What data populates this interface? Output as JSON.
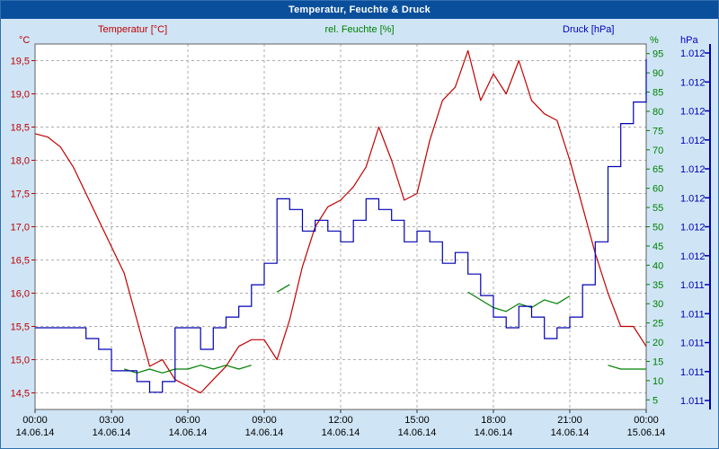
{
  "window": {
    "title": "Temperatur, Feuchte & Druck"
  },
  "header": {
    "temp_label": "Temperatur [°C]",
    "hum_label": "rel. Feuchte [%]",
    "press_label": "Druck [hPa]"
  },
  "axes_units": {
    "left": "°C",
    "right_hum": "%",
    "right_press": "hPa"
  },
  "colors": {
    "temp": "#C00000",
    "hum": "#008000",
    "press": "#0000B4",
    "titlebar": "#0A4F9C",
    "page_bg": "#CFE5F6",
    "plot_bg": "#FFFFFF",
    "grid": "#ADADAD",
    "plot_border": "#606060",
    "axis_text": "#000000"
  },
  "chart_data": {
    "type": "line",
    "title": "Temperatur, Feuchte & Druck",
    "grid": "dashed",
    "legend_position": "top",
    "x_hours": [
      0,
      0.5,
      1,
      1.5,
      2,
      2.5,
      3,
      3.5,
      4,
      4.5,
      5,
      5.5,
      6,
      6.5,
      7,
      7.5,
      8,
      8.5,
      9,
      9.5,
      10,
      10.5,
      11,
      11.5,
      12,
      12.5,
      13,
      13.5,
      14,
      14.5,
      15,
      15.5,
      16,
      16.5,
      17,
      17.5,
      18,
      18.5,
      19,
      19.5,
      20,
      20.5,
      21,
      21.5,
      22,
      22.5,
      23,
      23.5,
      24
    ],
    "x_tick_hours": [
      0,
      3,
      6,
      9,
      12,
      15,
      18,
      21,
      24
    ],
    "x_tick_labels": [
      "00:00",
      "03:00",
      "06:00",
      "09:00",
      "12:00",
      "15:00",
      "18:00",
      "21:00",
      "00:00"
    ],
    "x_date_labels": [
      "14.06.14",
      "14.06.14",
      "14.06.14",
      "14.06.14",
      "14.06.14",
      "14.06.14",
      "14.06.14",
      "14.06.14",
      "15.06.14"
    ],
    "series": [
      {
        "name": "Temperatur",
        "unit": "°C",
        "color_key": "temp",
        "axis": "temp",
        "style": "line",
        "values": [
          18.4,
          18.35,
          18.2,
          17.9,
          17.5,
          17.1,
          16.7,
          16.3,
          15.6,
          14.9,
          15.0,
          14.7,
          14.6,
          14.5,
          14.7,
          14.9,
          15.2,
          15.3,
          15.3,
          15.0,
          15.6,
          16.4,
          17.0,
          17.3,
          17.4,
          17.6,
          17.9,
          18.5,
          18.0,
          17.4,
          17.5,
          18.3,
          18.9,
          19.1,
          19.65,
          18.9,
          19.3,
          19.0,
          19.5,
          18.9,
          18.7,
          18.6,
          18.0,
          17.3,
          16.6,
          16.0,
          15.5,
          15.5,
          15.2
        ]
      },
      {
        "name": "rel. Feuchte",
        "unit": "%",
        "color_key": "hum",
        "axis": "hum",
        "style": "line",
        "values": [
          null,
          null,
          null,
          null,
          null,
          null,
          null,
          13,
          12,
          13,
          12,
          13,
          13,
          14,
          13,
          14,
          13,
          14,
          null,
          33,
          35,
          null,
          null,
          null,
          null,
          null,
          null,
          null,
          null,
          null,
          null,
          null,
          null,
          null,
          33,
          31,
          29,
          28,
          30,
          29,
          31,
          30,
          32,
          null,
          null,
          14,
          13,
          13,
          13
        ]
      },
      {
        "name": "Druck",
        "unit": "hPa",
        "color_key": "press",
        "axis": "press",
        "style": "step",
        "values": [
          1011.3,
          1011.3,
          1011.3,
          1011.3,
          1011.25,
          1011.2,
          1011.1,
          1011.1,
          1011.05,
          1011.0,
          1011.05,
          1011.3,
          1011.3,
          1011.2,
          1011.3,
          1011.35,
          1011.4,
          1011.5,
          1011.6,
          1011.9,
          1011.85,
          1011.75,
          1011.8,
          1011.75,
          1011.7,
          1011.8,
          1011.9,
          1011.85,
          1011.8,
          1011.7,
          1011.75,
          1011.7,
          1011.6,
          1011.65,
          1011.55,
          1011.45,
          1011.35,
          1011.3,
          1011.4,
          1011.35,
          1011.25,
          1011.3,
          1011.35,
          1011.5,
          1011.7,
          1012.05,
          1012.25,
          1012.35,
          1012.55
        ]
      }
    ],
    "axis_temp": {
      "range": [
        14.25,
        19.75
      ],
      "ticks": [
        19.5,
        19.0,
        18.5,
        18.0,
        17.5,
        17.0,
        16.5,
        16.0,
        15.5,
        15.0,
        14.5
      ],
      "tick_labels": [
        "19,5",
        "19,0",
        "18,5",
        "18,0",
        "17,5",
        "17,0",
        "16,5",
        "16,0",
        "15,5",
        "15,0",
        "14,5"
      ]
    },
    "axis_hum": {
      "range": [
        2.5,
        97.5
      ],
      "ticks": [
        95,
        90,
        85,
        80,
        75,
        70,
        65,
        60,
        55,
        50,
        45,
        40,
        35,
        30,
        25,
        20,
        15,
        10,
        5
      ],
      "tick_labels": [
        "95",
        "90",
        "85",
        "80",
        "75",
        "70",
        "65",
        "60",
        "55",
        "50",
        "45",
        "40",
        "35",
        "30",
        "25",
        "20",
        "15",
        "10",
        "5"
      ]
    },
    "axis_press": {
      "range": [
        1010.92,
        1012.62
      ],
      "tick_labels": [
        "1.012",
        "1.012",
        "1.012",
        "1.012",
        "1.012",
        "1.012",
        "1.012",
        "1.012",
        "1.011",
        "1.011",
        "1.011",
        "1.011",
        "1.011"
      ]
    }
  }
}
